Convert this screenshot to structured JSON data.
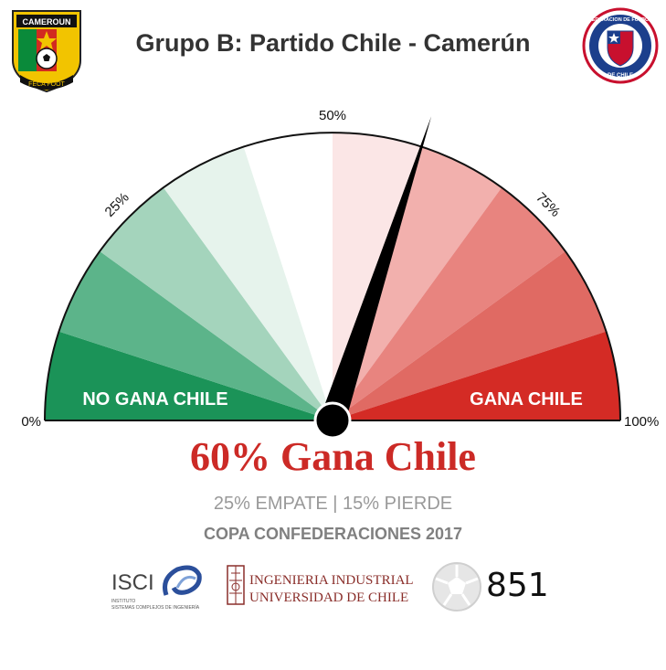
{
  "header": {
    "title": "Grupo B: Partido Chile - Camerún",
    "left_badge_top": "CAMEROUN",
    "left_badge_bottom": "FECA FOOT",
    "right_badge_ring": "FEDERACION DE FUTBOL",
    "right_badge_bottom": "DE CHILE"
  },
  "chart_data": {
    "type": "gauge",
    "value": 60,
    "min": 0,
    "max": 100,
    "ticks": [
      {
        "value": 0,
        "label": "0%"
      },
      {
        "value": 25,
        "label": "25%"
      },
      {
        "value": 50,
        "label": "50%"
      },
      {
        "value": 75,
        "label": "75%"
      },
      {
        "value": 100,
        "label": "100%"
      }
    ],
    "left_zone_label": "NO GANA CHILE",
    "right_zone_label": "GANA CHILE",
    "left_colors": [
      "#1b9358",
      "#5cb48a",
      "#a4d4bc",
      "#e6f3ec"
    ],
    "mid_color": "#ffffff",
    "right_colors": [
      "#fbe6e6",
      "#f2b0ad",
      "#e8847f",
      "#e06a63",
      "#d42b25"
    ]
  },
  "summary": {
    "headline": "60% Gana Chile",
    "headline_color": "#cc2a26",
    "sub": "25% EMPATE | 15% PIERDE",
    "competition": "COPA CONFEDERACIONES 2017"
  },
  "footer": {
    "isci_name": "ISCI",
    "isci_line1": "INSTITUTO",
    "isci_line2": "SISTEMAS COMPLEJOS DE INGENIERÍA",
    "ing_line1": "INGENIERIA INDUSTRIAL",
    "ing_line2": "UNIVERSIDAD DE CHILE",
    "count": "851"
  }
}
